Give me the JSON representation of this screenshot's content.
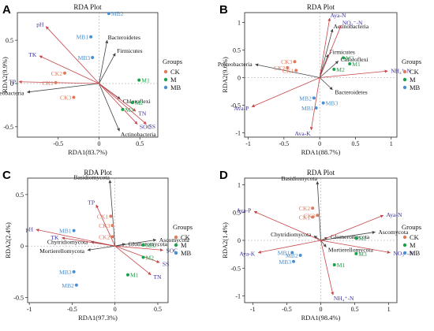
{
  "colors": {
    "env_arrow": "#c8464a",
    "taxa_arrow": "#444444",
    "env_label": "#3a33a0",
    "taxa_label": "#111111",
    "CK": "#e07a5a",
    "M": "#1aa24a",
    "MB": "#4a90d0"
  },
  "chart_data": [
    {
      "panel": "A",
      "type": "scatter",
      "title": "RDA Plot",
      "xlabel": "RDA1(83.7%)",
      "ylabel": "RDA2(9.9%)",
      "xlim": [
        -1.0,
        0.72
      ],
      "ylim": [
        -0.62,
        0.82
      ],
      "xticks": [
        -0.5,
        0,
        0.5
      ],
      "yticks": [
        -0.5,
        0,
        0.5
      ],
      "legend": {
        "title": "Groups",
        "items": [
          "CK",
          "M",
          "MB"
        ],
        "position": "right"
      },
      "env_vectors": [
        {
          "name": "pH",
          "x": -0.65,
          "y": 0.66
        },
        {
          "name": "TK",
          "x": -0.73,
          "y": 0.32
        },
        {
          "name": "TP",
          "x": -0.98,
          "y": 0.02
        },
        {
          "name": "TN",
          "x": 0.45,
          "y": -0.32
        },
        {
          "name": "SOC",
          "x": 0.47,
          "y": -0.47
        },
        {
          "name": "SS",
          "x": 0.58,
          "y": -0.47
        }
      ],
      "taxa_vectors": [
        {
          "name": "Bacteroidetes",
          "x": 0.1,
          "y": 0.5
        },
        {
          "name": "Firmicutes",
          "x": 0.2,
          "y": 0.35
        },
        {
          "name": "Proteobacteria",
          "x": -0.88,
          "y": -0.1
        },
        {
          "name": "Chloroflexi",
          "x": 0.26,
          "y": -0.18
        },
        {
          "name": "Actinobacteria",
          "x": 0.25,
          "y": -0.55
        }
      ],
      "samples": [
        {
          "name": "CK1",
          "group": "CK",
          "x": -0.53,
          "y": 0.01
        },
        {
          "name": "CK2",
          "group": "CK",
          "x": -0.42,
          "y": 0.12
        },
        {
          "name": "CK3",
          "group": "CK",
          "x": -0.31,
          "y": -0.16
        },
        {
          "name": "M1",
          "group": "M",
          "x": 0.49,
          "y": 0.04
        },
        {
          "name": "M2",
          "group": "M",
          "x": 0.41,
          "y": -0.22
        },
        {
          "name": "M3",
          "group": "M",
          "x": 0.29,
          "y": -0.3
        },
        {
          "name": "MB1",
          "group": "MB",
          "x": -0.1,
          "y": 0.54
        },
        {
          "name": "MB2",
          "group": "MB",
          "x": 0.12,
          "y": 0.81
        },
        {
          "name": "MB3",
          "group": "MB",
          "x": -0.08,
          "y": 0.3
        }
      ]
    },
    {
      "panel": "B",
      "type": "scatter",
      "title": "RDA Plot",
      "xlabel": "RDA1(88.7%)",
      "ylabel": "RDA2(9.6%)",
      "xlim": [
        -1.05,
        1.08
      ],
      "ylim": [
        -1.08,
        1.18
      ],
      "xticks": [
        -1.0,
        -0.5,
        0.0,
        0.5,
        1.0
      ],
      "yticks": [
        -1.0,
        -0.5,
        0.0,
        0.5,
        1.0
      ],
      "legend": {
        "title": "Groups",
        "items": [
          "CK",
          "M",
          "MB"
        ],
        "position": "right"
      },
      "env_vectors": [
        {
          "name": "Aya-N",
          "x": 0.14,
          "y": 1.08
        },
        {
          "name": "NO₃⁻-N",
          "x": 0.3,
          "y": 0.95
        },
        {
          "name": "NH₄⁺-N",
          "x": 0.95,
          "y": 0.12
        },
        {
          "name": "Ava-P",
          "x": -0.95,
          "y": -0.53
        },
        {
          "name": "Ava-K",
          "x": -0.12,
          "y": -0.95
        }
      ],
      "taxa_vectors": [
        {
          "name": "Actinobacteria",
          "x": 0.18,
          "y": 0.88
        },
        {
          "name": "Firmicutes",
          "x": 0.12,
          "y": 0.42
        },
        {
          "name": "Chloroflexi",
          "x": 0.26,
          "y": 0.3
        },
        {
          "name": "Proteobacteria",
          "x": -0.9,
          "y": 0.24
        },
        {
          "name": "Bacteroidetes",
          "x": 0.18,
          "y": -0.22
        }
      ],
      "samples": [
        {
          "name": "CK1",
          "group": "CK",
          "x": -0.33,
          "y": 0.13
        },
        {
          "name": "CK2",
          "group": "CK",
          "x": -0.45,
          "y": 0.18
        },
        {
          "name": "CK3",
          "group": "CK",
          "x": -0.35,
          "y": 0.29
        },
        {
          "name": "M1",
          "group": "M",
          "x": 0.42,
          "y": 0.25
        },
        {
          "name": "M2",
          "group": "M",
          "x": 0.2,
          "y": 0.15
        },
        {
          "name": "M3",
          "group": "M",
          "x": 0.33,
          "y": 0.36
        },
        {
          "name": "MB1",
          "group": "MB",
          "x": -0.05,
          "y": -0.55
        },
        {
          "name": "MB2",
          "group": "MB",
          "x": -0.08,
          "y": -0.37
        },
        {
          "name": "MB3",
          "group": "MB",
          "x": 0.05,
          "y": -0.46
        }
      ]
    },
    {
      "panel": "C",
      "type": "scatter",
      "title": "RDA Plot",
      "xlabel": "RDA1(97.3%)",
      "ylabel": "RDA2(2.4%)",
      "xlim": [
        -1.02,
        0.62
      ],
      "ylim": [
        -0.55,
        0.66
      ],
      "xticks": [
        -1.0,
        -0.5,
        0.0,
        0.5
      ],
      "yticks": [
        -0.5,
        0.0,
        0.5
      ],
      "legend": {
        "title": "Groups",
        "items": [
          "CK",
          "M",
          "MB"
        ],
        "position": "right"
      },
      "env_vectors": [
        {
          "name": "TP",
          "x": -0.22,
          "y": 0.4
        },
        {
          "name": "pH",
          "x": -0.92,
          "y": 0.16
        },
        {
          "name": "TK",
          "x": -0.62,
          "y": 0.08
        },
        {
          "name": "SOC",
          "x": 0.56,
          "y": -0.04
        },
        {
          "name": "SS",
          "x": 0.52,
          "y": -0.16
        },
        {
          "name": "TN",
          "x": 0.42,
          "y": -0.28
        }
      ],
      "taxa_vectors": [
        {
          "name": "Basidiomycota",
          "x": -0.06,
          "y": 0.64
        },
        {
          "name": "Ascomycota",
          "x": 0.48,
          "y": 0.06
        },
        {
          "name": "Chytridiomycota",
          "x": -0.28,
          "y": 0.04
        },
        {
          "name": "Glomeromycota",
          "x": 0.12,
          "y": 0.02
        },
        {
          "name": "Mortierellomycota",
          "x": -0.32,
          "y": -0.04
        }
      ],
      "samples": [
        {
          "name": "CK1",
          "group": "CK",
          "x": -0.05,
          "y": 0.29
        },
        {
          "name": "CK2",
          "group": "CK",
          "x": -0.03,
          "y": 0.09
        },
        {
          "name": "CK3",
          "group": "CK",
          "x": -0.03,
          "y": 0.2
        },
        {
          "name": "M1",
          "group": "M",
          "x": 0.15,
          "y": -0.28
        },
        {
          "name": "M2",
          "group": "M",
          "x": 0.33,
          "y": -0.11
        },
        {
          "name": "M3",
          "group": "M",
          "x": 0.33,
          "y": 0.01
        },
        {
          "name": "MB1",
          "group": "MB",
          "x": -0.48,
          "y": 0.15
        },
        {
          "name": "MB2",
          "group": "MB",
          "x": -0.45,
          "y": -0.38
        },
        {
          "name": "MB3",
          "group": "MB",
          "x": -0.48,
          "y": -0.25
        }
      ]
    },
    {
      "panel": "D",
      "type": "scatter",
      "title": "RDA Plot",
      "xlabel": "RDA1(98.4%)",
      "ylabel": "RDA2(1.4%)",
      "xlim": [
        -1.12,
        1.12
      ],
      "ylim": [
        -1.12,
        1.12
      ],
      "xticks": [
        -1.0,
        -0.5,
        0.0,
        0.5,
        1.0
      ],
      "yticks": [
        -1.0,
        -0.5,
        0.0,
        0.5,
        1.0
      ],
      "legend": {
        "title": "Groups",
        "items": [
          "CK",
          "M",
          "MB"
        ],
        "position": "right"
      },
      "env_vectors": [
        {
          "name": "Aya-P",
          "x": -0.98,
          "y": 0.52
        },
        {
          "name": "Aya-K",
          "x": -0.92,
          "y": -0.22
        },
        {
          "name": "Aya-N",
          "x": 0.92,
          "y": 0.45
        },
        {
          "name": "NO₃⁻-N",
          "x": 1.02,
          "y": -0.22
        },
        {
          "name": "NH₄⁺-N",
          "x": 0.18,
          "y": -0.98
        }
      ],
      "taxa_vectors": [
        {
          "name": "Basidiomycota",
          "x": -0.05,
          "y": 1.06
        },
        {
          "name": "Ascomycota",
          "x": 0.8,
          "y": 0.15
        },
        {
          "name": "Chytridiomycota",
          "x": -0.1,
          "y": 0.08
        },
        {
          "name": "Glomeromycota",
          "x": 0.1,
          "y": 0.05
        },
        {
          "name": "Mortierellomycota",
          "x": 0.08,
          "y": -0.12
        }
      ],
      "samples": [
        {
          "name": "CK1",
          "group": "CK",
          "x": -0.12,
          "y": 0.42
        },
        {
          "name": "CK2",
          "group": "CK",
          "x": -0.12,
          "y": 0.58
        },
        {
          "name": "CK3",
          "group": "CK",
          "x": -0.05,
          "y": 0.45
        },
        {
          "name": "M1",
          "group": "M",
          "x": 0.2,
          "y": -0.44
        },
        {
          "name": "M2",
          "group": "M",
          "x": 0.52,
          "y": 0.04
        },
        {
          "name": "M3",
          "group": "M",
          "x": 0.52,
          "y": -0.24
        },
        {
          "name": "MB1",
          "group": "MB",
          "x": -0.42,
          "y": -0.22
        },
        {
          "name": "MB2",
          "group": "MB",
          "x": -0.3,
          "y": -0.27
        },
        {
          "name": "MB3",
          "group": "MB",
          "x": -0.4,
          "y": -0.38
        }
      ]
    }
  ]
}
